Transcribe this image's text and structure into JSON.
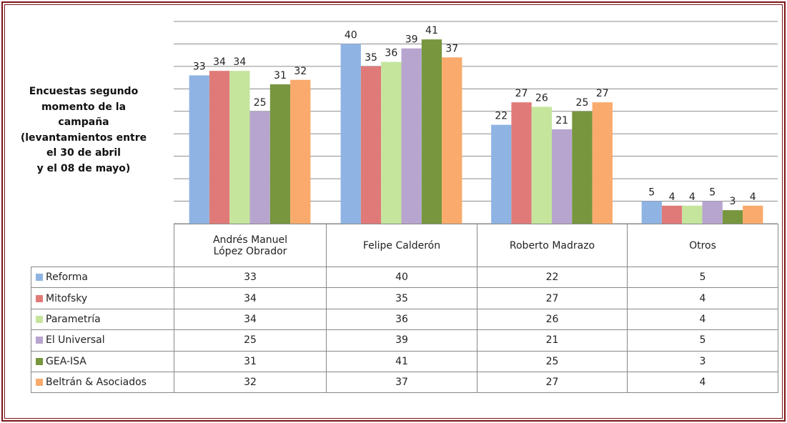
{
  "chart_data": {
    "type": "bar",
    "title_lines": [
      "Encuestas segundo",
      "momento de la",
      "campaña",
      "(levantamientos entre",
      "el 30 de abril",
      "y el 08 de mayo)"
    ],
    "categories": [
      "Andrés Manuel López Obrador",
      "Felipe Calderón",
      "Roberto Madrazo",
      "Otros"
    ],
    "series": [
      {
        "name": "Reforma",
        "color": "#8fb4e3",
        "values": [
          33,
          40,
          22,
          5
        ]
      },
      {
        "name": "Mitofsky",
        "color": "#e07a78",
        "values": [
          34,
          35,
          27,
          4
        ]
      },
      {
        "name": "Parametría",
        "color": "#c5e59d",
        "values": [
          34,
          36,
          26,
          4
        ]
      },
      {
        "name": "El Universal",
        "color": "#b7a5cf",
        "values": [
          25,
          39,
          21,
          5
        ]
      },
      {
        "name": "GEA-ISA",
        "color": "#77963e",
        "values": [
          31,
          41,
          25,
          3
        ]
      },
      {
        "name": "Beltrán & Asociados",
        "color": "#f9aa6c",
        "values": [
          32,
          37,
          27,
          4
        ]
      }
    ],
    "ylim": [
      0,
      45
    ],
    "yticks": [
      0,
      5,
      10,
      15,
      20,
      25,
      30,
      35,
      40,
      45
    ],
    "grid": true
  }
}
